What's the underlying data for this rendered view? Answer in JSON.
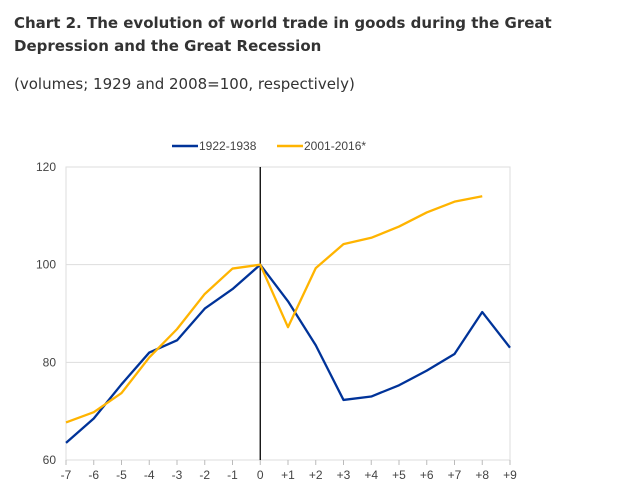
{
  "chart_data": {
    "type": "line",
    "title": "Chart 2. The evolution of world trade in goods during the Great Depression and the Great Recession",
    "subtitle": "(volumes; 1929 and 2008=100, respectively)",
    "x": [
      "-7",
      "-6",
      "-5",
      "-4",
      "-3",
      "-2",
      "-1",
      "0",
      "+1",
      "+2",
      "+3",
      "+4",
      "+5",
      "+6",
      "+7",
      "+8",
      "+9"
    ],
    "ylim": [
      60,
      120
    ],
    "yticks": [
      "60",
      "80",
      "100",
      "120"
    ],
    "legend_position": "top-center",
    "series": [
      {
        "name": "1922-1938",
        "color": "#003399",
        "values": [
          63.5,
          68.5,
          75.5,
          82,
          84.5,
          91,
          95,
          100,
          92.5,
          83.5,
          72.3,
          73,
          75.3,
          78.3,
          81.7,
          90.3,
          83
        ]
      },
      {
        "name": "2001-2016*",
        "color": "#FFB400",
        "values": [
          67.7,
          69.8,
          73.7,
          81,
          86.8,
          94,
          99.2,
          100,
          87.2,
          99.3,
          104.2,
          105.5,
          107.8,
          110.7,
          112.9,
          114,
          null
        ]
      }
    ]
  }
}
